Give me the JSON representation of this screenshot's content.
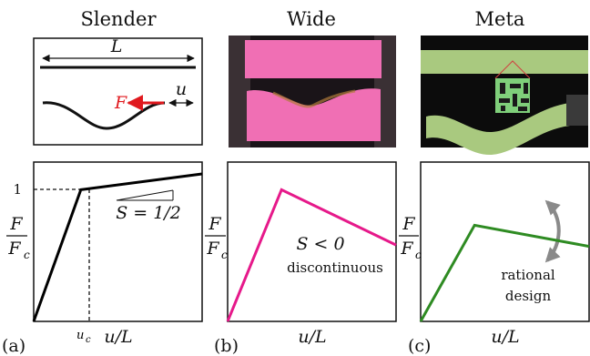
{
  "titles": {
    "slender": "Slender",
    "wide": "Wide",
    "meta": "Meta"
  },
  "slender_sketch": {
    "length_label": "L",
    "force_label": "F",
    "disp_label": "u"
  },
  "panel_labels": {
    "a": "(a)",
    "b": "(b)",
    "c": "(c)"
  },
  "axes": {
    "y_num": "F",
    "y_den": "F",
    "y_den_sub": "c",
    "x_label": "u/L",
    "uc_label": "u",
    "uc_sub": "c",
    "one_label": "1"
  },
  "annotations": {
    "slope_a": "S = 1/2",
    "slope_b": "S < 0",
    "discontinuous": "discontinuous",
    "rational_1": "rational",
    "rational_2": "design"
  },
  "colors": {
    "slender": "#000000",
    "wide": "#e6198a",
    "meta": "#2e8b22",
    "force_arrow": "#e0191e",
    "design_arrow": "#8a8a8a",
    "wide_strip": "#f06fb4",
    "meta_strip": "#a9c97f"
  },
  "chart_data": [
    {
      "type": "line",
      "panel": "a",
      "series": [
        {
          "x": [
            0,
            0.28,
            1.0
          ],
          "y": [
            0,
            1.0,
            1.12
          ]
        }
      ]
    },
    {
      "type": "line",
      "panel": "b",
      "series": [
        {
          "x": [
            0,
            0.32,
            1.0
          ],
          "y": [
            0,
            1.0,
            0.58
          ]
        }
      ]
    },
    {
      "type": "line",
      "panel": "c",
      "series": [
        {
          "x": [
            0,
            0.32,
            1.0
          ],
          "y": [
            0,
            0.73,
            0.57
          ]
        }
      ]
    }
  ]
}
